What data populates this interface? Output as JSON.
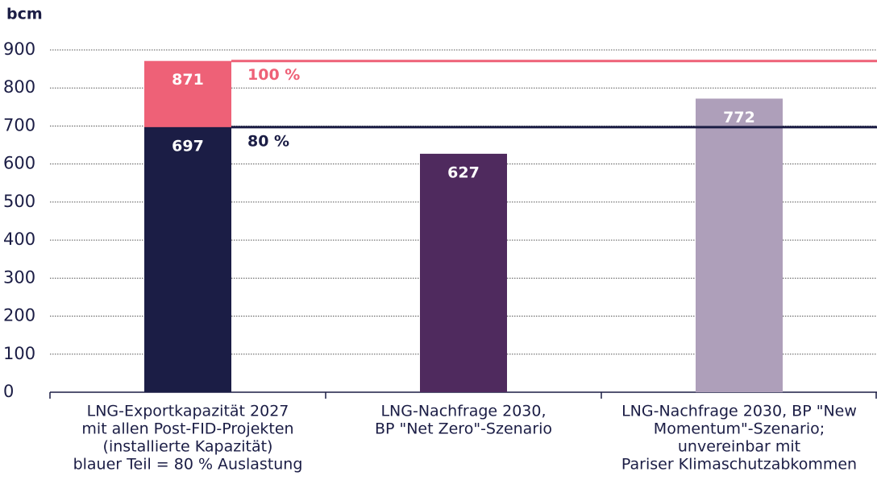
{
  "chart_data": {
    "type": "bar",
    "y_label": "bcm",
    "categories": [
      [
        "LNG-Exportkapazität 2027",
        "mit allen Post-FID-Projekten",
        "(installierte Kapazität)",
        "blauer Teil = 80 % Auslastung"
      ],
      [
        "LNG-Nachfrage 2030,",
        "BP \"Net Zero\"-Szenario"
      ],
      [
        "LNG-Nachfrage 2030, BP \"New",
        "Momentum\"-Szenario;",
        "unvereinbar mit",
        "Pariser Klimaschutzabkommen"
      ]
    ],
    "series": [
      {
        "colors": [
          "#ee6177",
          null,
          null
        ],
        "values": [
          871,
          null,
          null
        ]
      },
      {
        "colors": [
          "#1b1d45",
          "#4f2a5e",
          "#ae9fba"
        ],
        "values": [
          697,
          627,
          772
        ]
      }
    ],
    "reference_lines": [
      {
        "value": 871,
        "label": "100 %",
        "color": "#ee6177"
      },
      {
        "value": 697,
        "label": "80 %",
        "color": "#1b1d45"
      }
    ],
    "ylim": [
      0,
      900
    ],
    "yticks": [
      0,
      100,
      200,
      300,
      400,
      500,
      600,
      700,
      800,
      900
    ],
    "grid": true
  }
}
